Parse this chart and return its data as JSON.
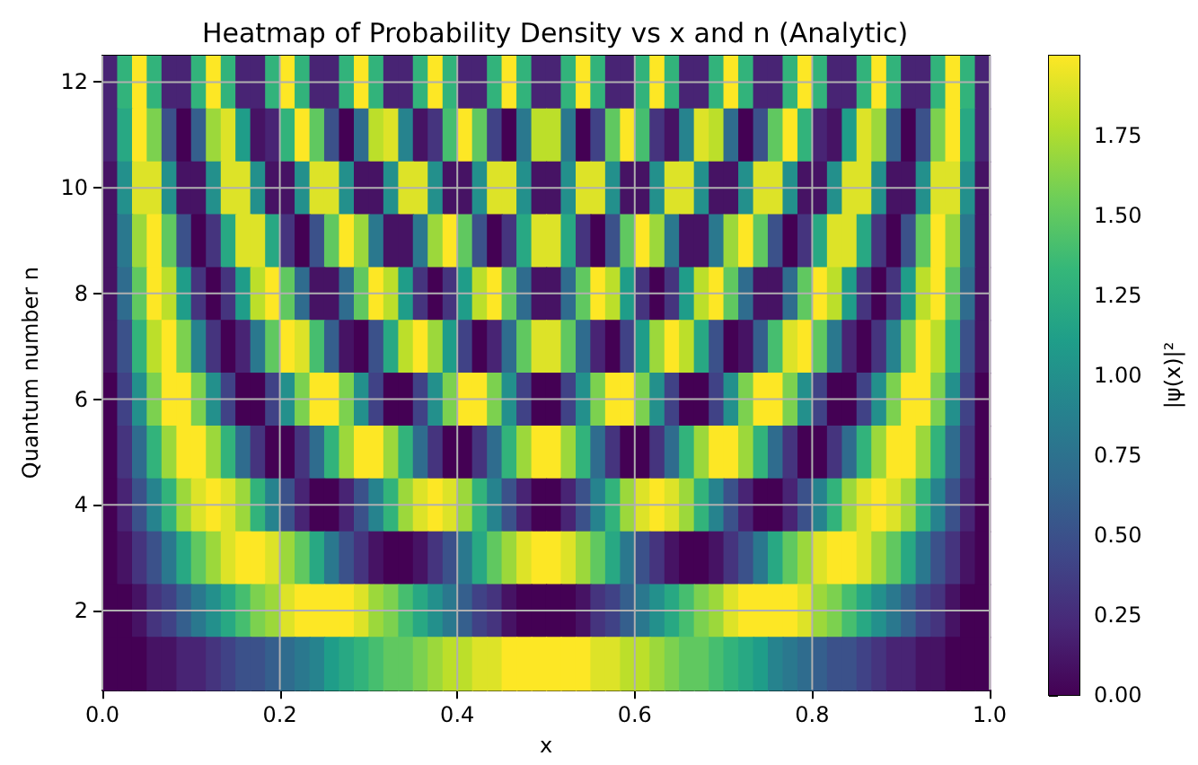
{
  "chart_data": {
    "type": "heatmap",
    "title": "Heatmap of Probability Density vs x and n (Analytic)",
    "xlabel": "x",
    "ylabel": "Quantum number n",
    "clabel": "|ψ(x)|²",
    "x": [
      0.0083,
      0.025,
      0.0417,
      0.0583,
      0.075,
      0.0917,
      0.1083,
      0.125,
      0.1417,
      0.1583,
      0.175,
      0.1917,
      0.2083,
      0.225,
      0.2417,
      0.2583,
      0.275,
      0.2917,
      0.3083,
      0.325,
      0.3417,
      0.3583,
      0.375,
      0.3917,
      0.4083,
      0.425,
      0.4417,
      0.4583,
      0.475,
      0.4917,
      0.5083,
      0.525,
      0.5417,
      0.5583,
      0.575,
      0.5917,
      0.6083,
      0.625,
      0.6417,
      0.6583,
      0.675,
      0.6917,
      0.7083,
      0.725,
      0.7417,
      0.7583,
      0.775,
      0.7917,
      0.8083,
      0.825,
      0.8417,
      0.8583,
      0.875,
      0.8917,
      0.9083,
      0.925,
      0.9417,
      0.9583,
      0.975,
      0.9917
    ],
    "y_categories": [
      "12",
      null,
      "10",
      null,
      "8",
      null,
      "6",
      null,
      "4",
      null,
      "2",
      null
    ],
    "cells": [
      [
        0.2,
        1.3,
        2.0,
        1.3,
        0.2,
        0.2,
        1.3,
        2.0,
        1.3,
        0.2,
        0.2,
        1.3,
        2.0,
        1.3,
        0.2,
        0.2,
        1.3,
        2.0,
        1.3,
        0.2,
        0.2,
        1.3,
        2.0,
        1.3,
        0.2,
        0.2,
        1.3,
        2.0,
        1.3,
        0.2,
        0.2,
        1.3,
        2.0,
        1.3,
        0.2,
        0.2,
        1.3,
        2.0,
        1.3,
        0.2,
        0.2,
        1.3,
        2.0,
        1.3,
        0.2,
        0.2,
        1.3,
        2.0,
        1.3,
        0.2,
        0.2,
        1.3,
        2.0,
        1.3,
        0.2,
        0.2,
        1.3,
        2.0,
        1.3,
        0.2
      ],
      [
        0.2,
        1.2,
        2.0,
        1.6,
        0.5,
        0.0,
        0.6,
        1.7,
        1.9,
        1.1,
        0.1,
        0.2,
        1.3,
        2.0,
        1.5,
        0.5,
        0.0,
        0.7,
        1.8,
        1.9,
        0.9,
        0.1,
        0.3,
        1.4,
        2.0,
        1.5,
        0.4,
        0.0,
        0.8,
        1.8,
        1.8,
        0.8,
        0.0,
        0.4,
        1.5,
        2.0,
        1.4,
        0.3,
        0.1,
        0.9,
        1.9,
        1.8,
        0.7,
        0.0,
        0.5,
        1.5,
        2.0,
        1.3,
        0.2,
        0.1,
        1.1,
        1.9,
        1.7,
        0.6,
        0.0,
        0.5,
        1.6,
        2.0,
        1.2,
        0.2
      ],
      [
        0.1,
        1.0,
        1.9,
        1.9,
        1.0,
        0.1,
        0.1,
        1.0,
        1.9,
        1.9,
        1.0,
        0.1,
        0.1,
        1.0,
        1.9,
        1.9,
        1.0,
        0.1,
        0.1,
        1.0,
        1.9,
        1.9,
        1.0,
        0.1,
        0.1,
        1.0,
        1.9,
        1.9,
        1.0,
        0.1,
        0.1,
        1.0,
        1.9,
        1.9,
        1.0,
        0.1,
        0.1,
        1.0,
        1.9,
        1.9,
        1.0,
        0.1,
        0.1,
        1.0,
        1.9,
        1.9,
        1.0,
        0.1,
        0.1,
        1.0,
        1.9,
        1.9,
        1.0,
        0.1,
        0.1,
        1.0,
        1.9,
        1.9,
        1.0,
        0.1
      ],
      [
        0.1,
        0.8,
        1.7,
        2.0,
        1.5,
        0.5,
        0.0,
        0.3,
        1.2,
        1.9,
        1.9,
        1.2,
        0.3,
        0.0,
        0.5,
        1.5,
        2.0,
        1.7,
        0.8,
        0.1,
        0.1,
        0.8,
        1.7,
        2.0,
        1.5,
        0.5,
        0.0,
        0.3,
        1.2,
        1.9,
        1.9,
        1.2,
        0.3,
        0.0,
        0.5,
        1.5,
        2.0,
        1.7,
        0.8,
        0.1,
        0.1,
        0.8,
        1.7,
        2.0,
        1.5,
        0.5,
        0.0,
        0.3,
        1.2,
        1.9,
        1.9,
        1.2,
        0.3,
        0.0,
        0.5,
        1.5,
        2.0,
        1.7,
        0.8,
        0.1
      ],
      [
        0.1,
        0.7,
        1.5,
        2.0,
        1.8,
        1.1,
        0.3,
        0.0,
        0.3,
        1.1,
        1.8,
        2.0,
        1.5,
        0.7,
        0.1,
        0.1,
        0.7,
        1.5,
        2.0,
        1.8,
        1.1,
        0.3,
        0.0,
        0.3,
        1.1,
        1.8,
        2.0,
        1.5,
        0.7,
        0.1,
        0.1,
        0.7,
        1.5,
        2.0,
        1.8,
        1.1,
        0.3,
        0.0,
        0.3,
        1.1,
        1.8,
        2.0,
        1.5,
        0.7,
        0.1,
        0.1,
        0.7,
        1.5,
        2.0,
        1.8,
        1.1,
        0.3,
        0.0,
        0.3,
        1.1,
        1.8,
        2.0,
        1.5,
        0.7,
        0.1
      ],
      [
        0.1,
        0.5,
        1.3,
        1.8,
        2.0,
        1.6,
        0.9,
        0.3,
        0.0,
        0.2,
        0.8,
        1.5,
        2.0,
        1.9,
        1.4,
        0.6,
        0.1,
        0.0,
        0.5,
        1.2,
        1.8,
        2.0,
        1.7,
        1.1,
        0.4,
        0.0,
        0.2,
        0.7,
        1.5,
        1.9,
        1.9,
        1.5,
        0.7,
        0.2,
        0.0,
        0.4,
        1.1,
        1.7,
        2.0,
        1.8,
        1.2,
        0.5,
        0.0,
        0.1,
        0.6,
        1.4,
        1.9,
        2.0,
        1.5,
        0.8,
        0.2,
        0.0,
        0.3,
        0.9,
        1.6,
        2.0,
        1.8,
        1.3,
        0.5,
        0.1
      ],
      [
        0.0,
        0.4,
        1.0,
        1.6,
        2.0,
        2.0,
        1.6,
        1.0,
        0.4,
        0.0,
        0.0,
        0.4,
        1.0,
        1.6,
        2.0,
        2.0,
        1.6,
        1.0,
        0.4,
        0.0,
        0.0,
        0.4,
        1.0,
        1.6,
        2.0,
        2.0,
        1.6,
        1.0,
        0.4,
        0.0,
        0.0,
        0.4,
        1.0,
        1.6,
        2.0,
        2.0,
        1.6,
        1.0,
        0.4,
        0.0,
        0.0,
        0.4,
        1.0,
        1.6,
        2.0,
        2.0,
        1.6,
        1.0,
        0.4,
        0.0,
        0.0,
        0.4,
        1.0,
        1.6,
        2.0,
        2.0,
        1.6,
        1.0,
        0.4,
        0.0
      ],
      [
        0.0,
        0.3,
        0.7,
        1.3,
        1.7,
        2.0,
        2.0,
        1.7,
        1.3,
        0.7,
        0.3,
        0.0,
        0.0,
        0.3,
        0.7,
        1.3,
        1.7,
        2.0,
        2.0,
        1.7,
        1.3,
        0.7,
        0.3,
        0.0,
        0.0,
        0.3,
        0.7,
        1.3,
        1.7,
        2.0,
        2.0,
        1.7,
        1.3,
        0.7,
        0.3,
        0.0,
        0.0,
        0.3,
        0.7,
        1.3,
        1.7,
        2.0,
        2.0,
        1.7,
        1.3,
        0.7,
        0.3,
        0.0,
        0.0,
        0.3,
        0.7,
        1.3,
        1.7,
        2.0,
        2.0,
        1.7,
        1.3,
        0.7,
        0.3,
        0.0
      ],
      [
        0.0,
        0.2,
        0.5,
        0.9,
        1.3,
        1.7,
        1.9,
        2.0,
        1.9,
        1.7,
        1.3,
        0.9,
        0.5,
        0.2,
        0.0,
        0.0,
        0.2,
        0.5,
        0.9,
        1.3,
        1.7,
        1.9,
        2.0,
        1.9,
        1.7,
        1.3,
        0.9,
        0.5,
        0.2,
        0.0,
        0.0,
        0.2,
        0.5,
        0.9,
        1.3,
        1.7,
        1.9,
        2.0,
        1.9,
        1.7,
        1.3,
        0.9,
        0.5,
        0.2,
        0.0,
        0.0,
        0.2,
        0.5,
        0.9,
        1.3,
        1.7,
        1.9,
        2.0,
        1.9,
        1.7,
        1.3,
        0.9,
        0.5,
        0.2,
        0.0
      ],
      [
        0.0,
        0.1,
        0.3,
        0.5,
        0.8,
        1.2,
        1.5,
        1.7,
        1.9,
        2.0,
        2.0,
        1.9,
        1.7,
        1.5,
        1.2,
        0.8,
        0.5,
        0.3,
        0.1,
        0.0,
        0.0,
        0.1,
        0.3,
        0.5,
        0.8,
        1.2,
        1.5,
        1.7,
        1.9,
        2.0,
        2.0,
        1.9,
        1.7,
        1.5,
        1.2,
        0.8,
        0.5,
        0.3,
        0.1,
        0.0,
        0.0,
        0.1,
        0.3,
        0.5,
        0.8,
        1.2,
        1.5,
        1.7,
        1.9,
        2.0,
        2.0,
        1.9,
        1.7,
        1.5,
        1.2,
        0.8,
        0.5,
        0.3,
        0.1,
        0.0
      ],
      [
        0.0,
        0.0,
        0.1,
        0.3,
        0.4,
        0.6,
        0.8,
        1.0,
        1.2,
        1.4,
        1.6,
        1.7,
        1.9,
        2.0,
        2.0,
        2.0,
        2.0,
        1.9,
        1.7,
        1.6,
        1.4,
        1.2,
        1.0,
        0.8,
        0.6,
        0.4,
        0.3,
        0.1,
        0.0,
        0.0,
        0.0,
        0.0,
        0.1,
        0.3,
        0.4,
        0.6,
        0.8,
        1.0,
        1.2,
        1.4,
        1.6,
        1.7,
        1.9,
        2.0,
        2.0,
        2.0,
        2.0,
        1.9,
        1.7,
        1.6,
        1.4,
        1.2,
        1.0,
        0.8,
        0.6,
        0.4,
        0.3,
        0.1,
        0.0,
        0.0
      ],
      [
        0.0,
        0.0,
        0.0,
        0.1,
        0.1,
        0.2,
        0.2,
        0.3,
        0.4,
        0.5,
        0.5,
        0.6,
        0.7,
        0.8,
        0.9,
        1.1,
        1.2,
        1.3,
        1.4,
        1.5,
        1.5,
        1.6,
        1.7,
        1.8,
        1.8,
        1.9,
        1.9,
        2.0,
        2.0,
        2.0,
        2.0,
        2.0,
        2.0,
        1.9,
        1.9,
        1.8,
        1.8,
        1.7,
        1.6,
        1.5,
        1.5,
        1.4,
        1.3,
        1.2,
        1.1,
        0.9,
        0.8,
        0.7,
        0.6,
        0.5,
        0.5,
        0.4,
        0.3,
        0.2,
        0.2,
        0.1,
        0.1,
        0.0,
        0.0,
        0.0
      ]
    ],
    "xlim": [
      0,
      1
    ],
    "xticks": [
      {
        "value": 0,
        "label": "0.0"
      },
      {
        "value": 0.2,
        "label": "0.2"
      },
      {
        "value": 0.4,
        "label": "0.4"
      },
      {
        "value": 0.6,
        "label": "0.6"
      },
      {
        "value": 0.8,
        "label": "0.8"
      },
      {
        "value": 1,
        "label": "1.0"
      }
    ],
    "clim": [
      0,
      2
    ],
    "cticks": [
      {
        "value": 0,
        "label": "0.00"
      },
      {
        "value": 0.25,
        "label": "0.25"
      },
      {
        "value": 0.5,
        "label": "0.50"
      },
      {
        "value": 0.75,
        "label": "0.75"
      },
      {
        "value": 1,
        "label": "1.00"
      },
      {
        "value": 1.25,
        "label": "1.25"
      },
      {
        "value": 1.5,
        "label": "1.50"
      },
      {
        "value": 1.75,
        "label": "1.75"
      }
    ],
    "grid": true
  }
}
